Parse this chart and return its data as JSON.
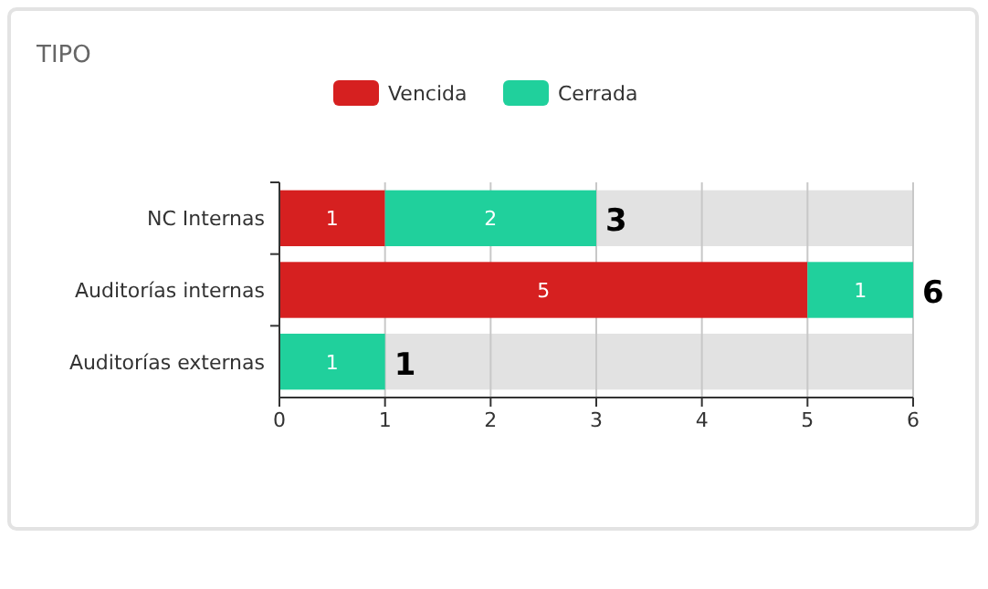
{
  "chart_data": {
    "type": "bar",
    "orientation": "horizontal",
    "stacked": true,
    "title": "TIPO",
    "categories": [
      "NC Internas",
      "Auditorías internas",
      "Auditorías externas"
    ],
    "series": [
      {
        "name": "Vencida",
        "color": "#d62020",
        "values": [
          1,
          5,
          0
        ],
        "value_labels": [
          "1",
          "5",
          null
        ]
      },
      {
        "name": "Cerrada",
        "color": "#20d09c",
        "values": [
          2,
          1,
          1
        ],
        "value_labels": [
          "2",
          "1",
          "1"
        ]
      },
      {
        "color": "#e2e2e2",
        "values": [
          3,
          0,
          5
        ]
      }
    ],
    "annotations": [
      {
        "text": "3",
        "x": 3,
        "y": "NC Internas"
      },
      {
        "text": "6",
        "x": 6,
        "y": "Auditorías internas"
      },
      {
        "text": "1",
        "x": 1,
        "y": "Auditorías externas"
      }
    ],
    "xlim": [
      0,
      6
    ],
    "xticks": [
      0,
      1,
      2,
      3,
      4,
      5,
      6
    ],
    "grid": "x",
    "legend": "top"
  }
}
